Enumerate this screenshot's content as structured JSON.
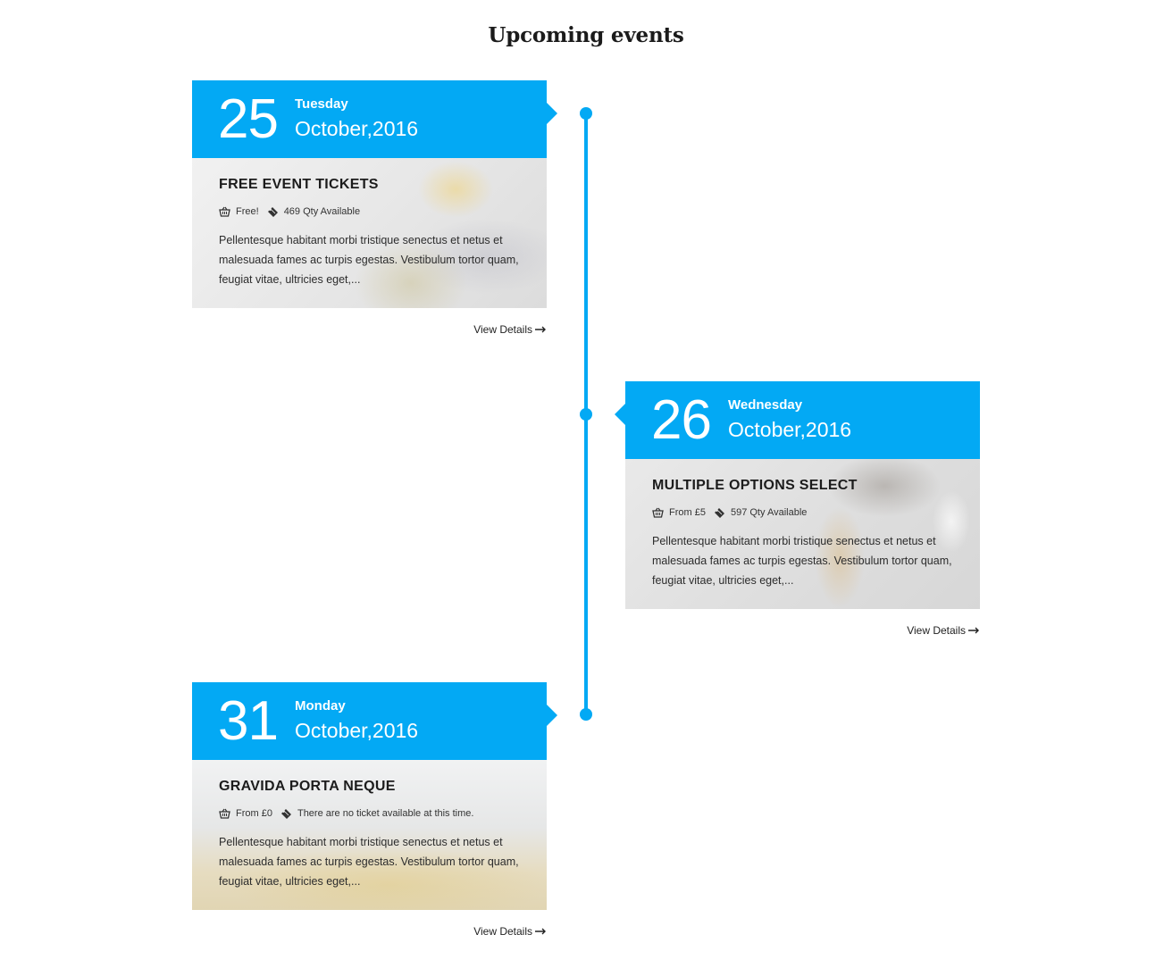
{
  "page": {
    "title": "Upcoming events"
  },
  "events": [
    {
      "day": "25",
      "weekday": "Tuesday",
      "month_year": "October,2016",
      "title": "FREE EVENT TICKETS",
      "price": "Free!",
      "availability": "469 Qty Available",
      "description": "Pellentesque habitant morbi tristique senectus et netus et malesuada fames ac turpis egestas. Vestibulum tortor quam, feugiat vitae, ultricies eget,...",
      "view_details": "View Details",
      "price_icon": "basket-icon",
      "ticket_icon": "ticket-icon"
    },
    {
      "day": "26",
      "weekday": "Wednesday",
      "month_year": "October,2016",
      "title": "MULTIPLE OPTIONS SELECT",
      "price": "From £5",
      "availability": "597 Qty Available",
      "description": "Pellentesque habitant morbi tristique senectus et netus et malesuada fames ac turpis egestas. Vestibulum tortor quam, feugiat vitae, ultricies eget,...",
      "view_details": "View Details",
      "price_icon": "basket-icon",
      "ticket_icon": "ticket-icon"
    },
    {
      "day": "31",
      "weekday": "Monday",
      "month_year": "October,2016",
      "title": "GRAVIDA PORTA NEQUE",
      "price": "From £0",
      "availability": "There are no ticket available at this time.",
      "description": "Pellentesque habitant morbi tristique senectus et netus et malesuada fames ac turpis egestas. Vestibulum tortor quam, feugiat vitae, ultricies eget,...",
      "view_details": "View Details",
      "price_icon": "basket-icon",
      "ticket_icon": "ticket-icon"
    }
  ],
  "colors": {
    "accent": "#03a9f4",
    "text": "#222222"
  }
}
